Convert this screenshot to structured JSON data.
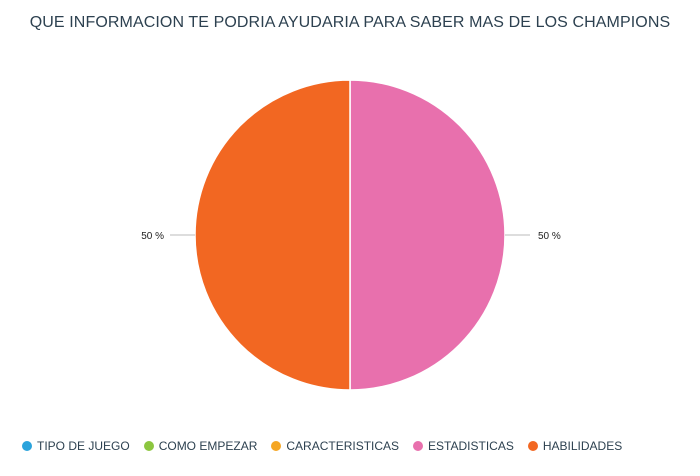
{
  "chart_data": {
    "type": "pie",
    "title": "QUE INFORMACION TE PODRIA AYUDARIA PARA SABER MAS DE LOS CHAMPIONS",
    "categories": [
      "TIPO DE JUEGO",
      "COMO EMPEZAR",
      "CARACTERISTICAS",
      "ESTADISTICAS",
      "HABILIDADES"
    ],
    "values": [
      0,
      0,
      0,
      50,
      50
    ],
    "labels": [
      "",
      "",
      "",
      "50 %",
      "50 %"
    ],
    "colors": [
      "#2aa3dc",
      "#8cc63f",
      "#f5a623",
      "#e870ad",
      "#f26722"
    ],
    "legend_position": "bottom"
  }
}
